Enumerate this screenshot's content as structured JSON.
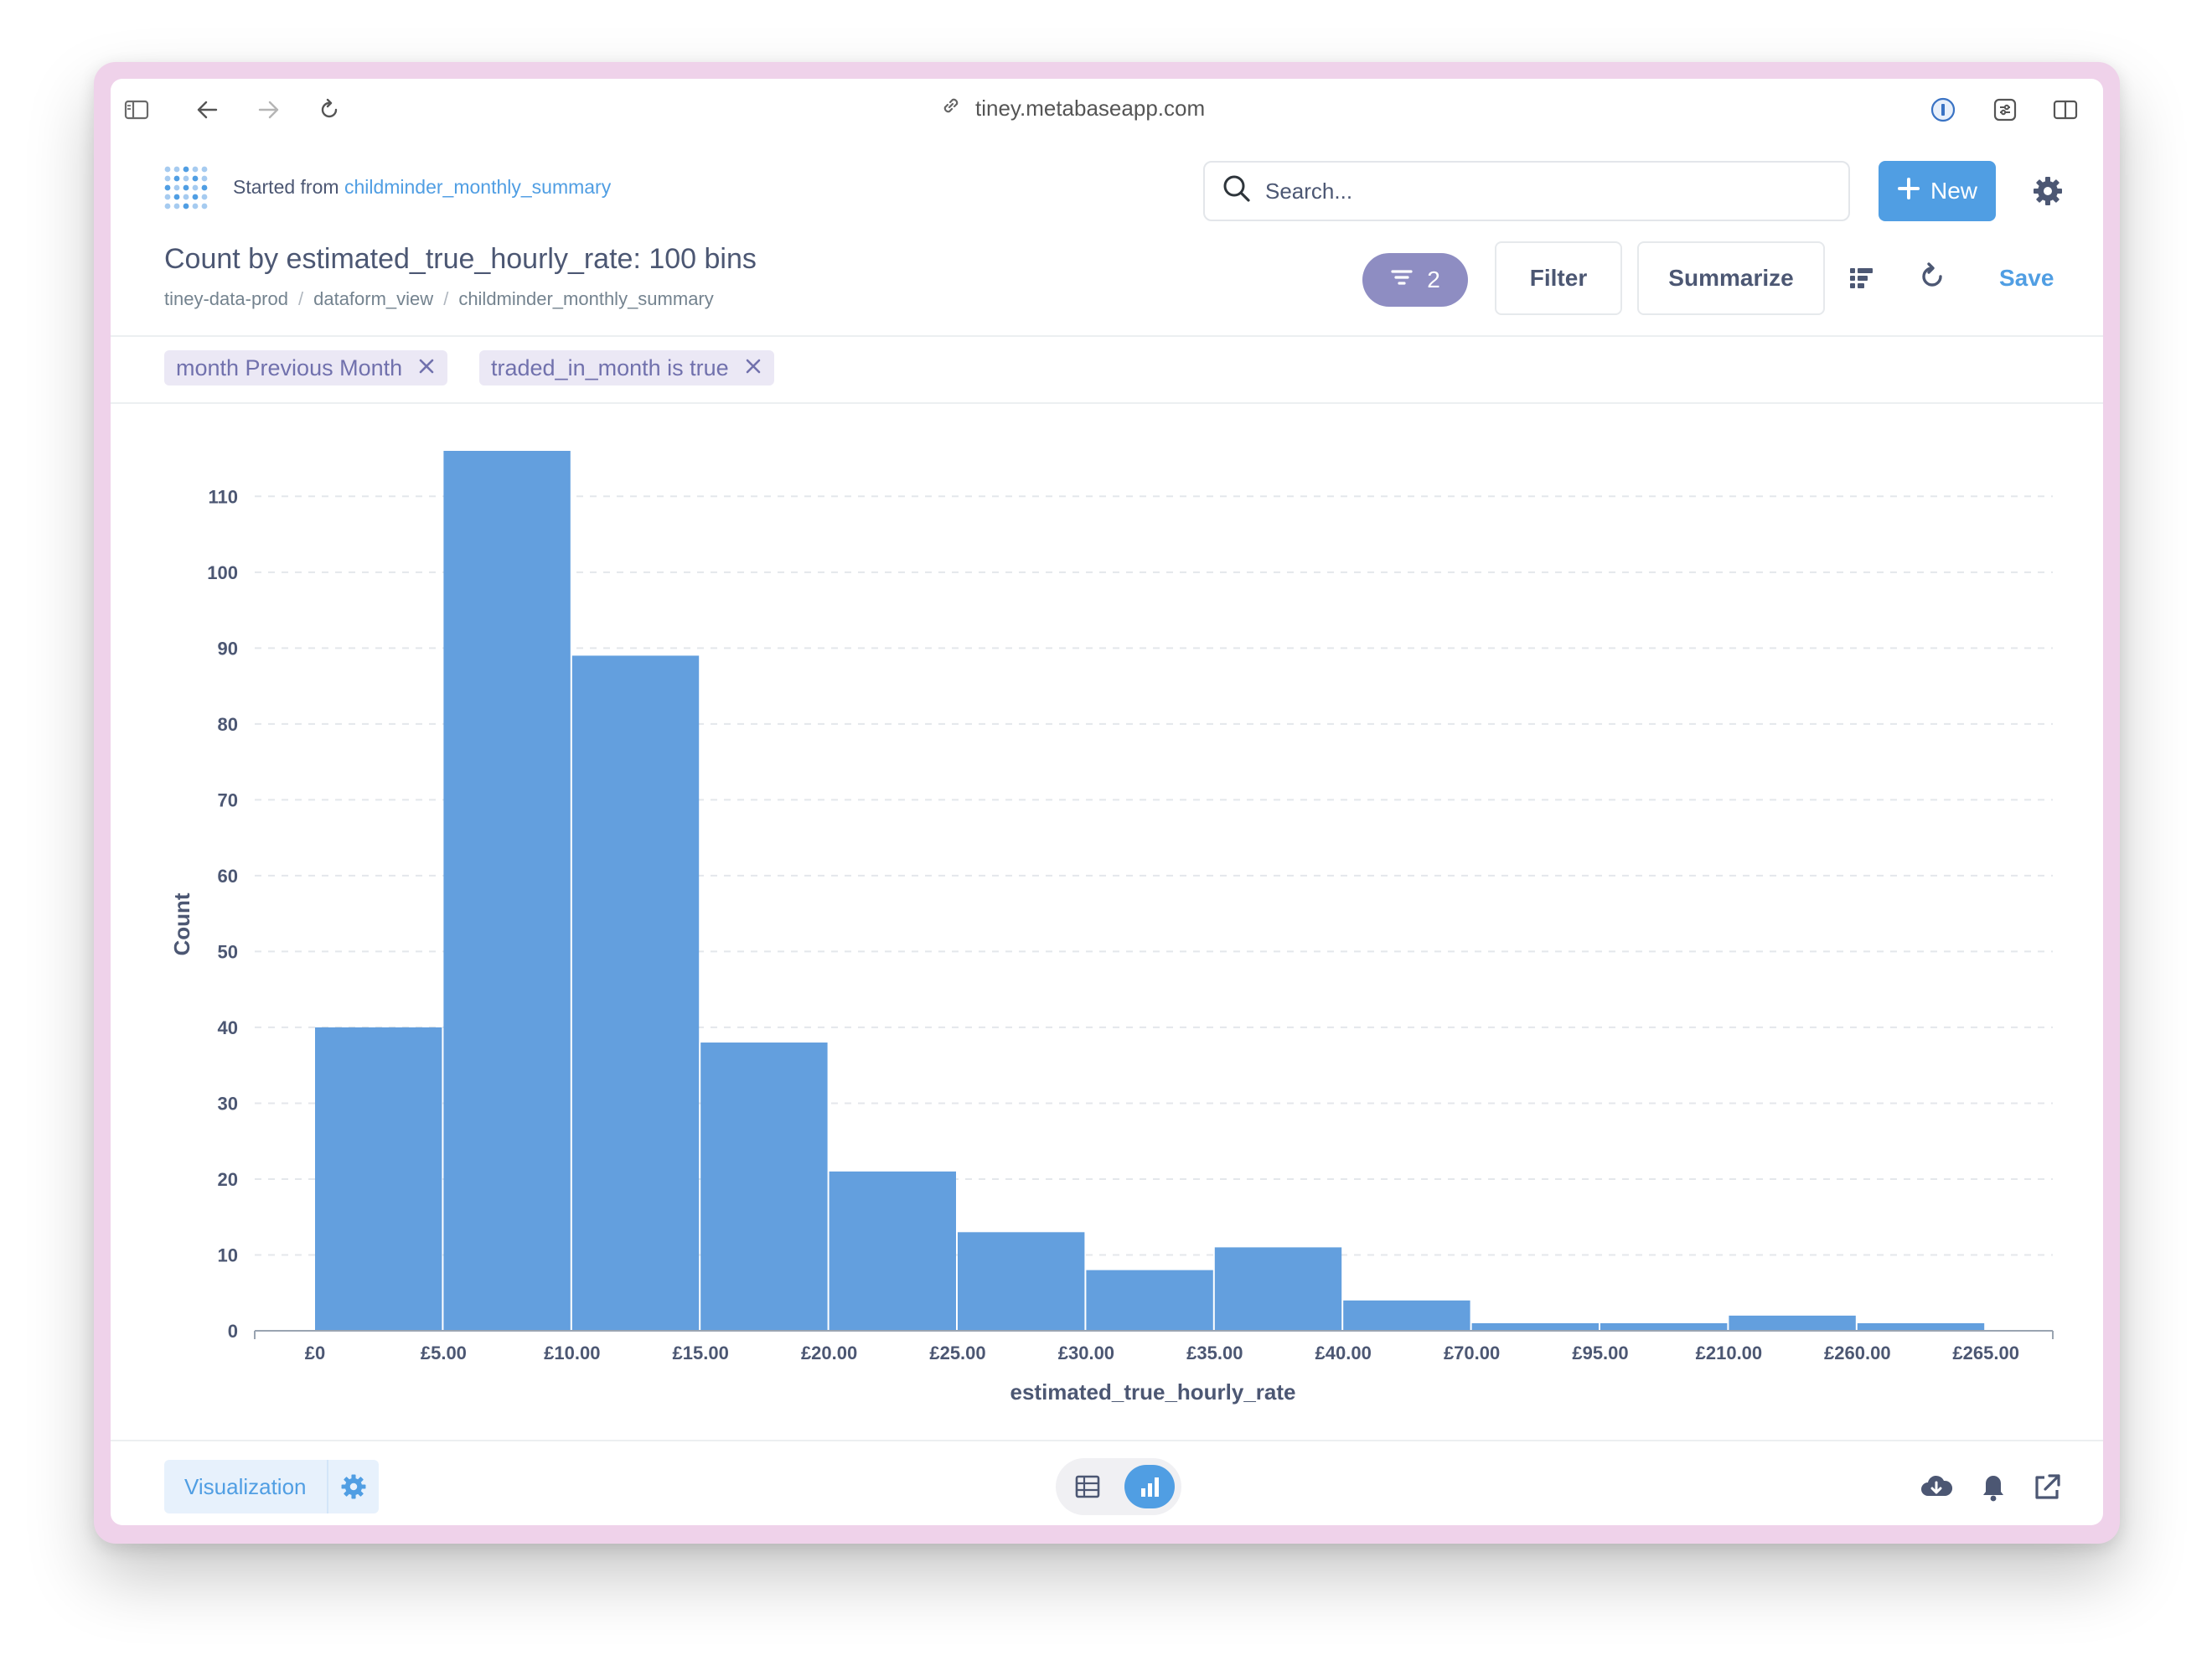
{
  "browser": {
    "url": "tiney.metabaseapp.com"
  },
  "header": {
    "started_prefix": "Started from",
    "started_link": "childminder_monthly_summary",
    "search_placeholder": "Search...",
    "new_label": "New"
  },
  "question": {
    "title": "Count by estimated_true_hourly_rate: 100 bins",
    "breadcrumbs": [
      "tiney-data-prod",
      "dataform_view",
      "childminder_monthly_summary"
    ],
    "breadcrumb_sep": "/",
    "filter_count": "2",
    "filter_label": "Filter",
    "summarize_label": "Summarize",
    "save_label": "Save"
  },
  "filters": [
    {
      "label": "month Previous Month"
    },
    {
      "label": "traded_in_month is true"
    }
  ],
  "footer": {
    "visualization_label": "Visualization"
  },
  "colors": {
    "accent": "#509ee3",
    "bar": "#639fde",
    "filter_pill_bg": "#ebe8f5",
    "filter_pill_text": "#7171ad",
    "filter_count_bg": "#8e8dc2"
  },
  "chart_data": {
    "type": "bar",
    "categories": [
      "£0",
      "£5.00",
      "£10.00",
      "£15.00",
      "£20.00",
      "£25.00",
      "£30.00",
      "£35.00",
      "£40.00",
      "£70.00",
      "£95.00",
      "£210.00",
      "£260.00",
      "£265.00"
    ],
    "values": [
      40,
      116,
      89,
      38,
      21,
      13,
      8,
      11,
      4,
      1,
      1,
      2,
      1,
      0
    ],
    "xlabel": "estimated_true_hourly_rate",
    "ylabel": "Count",
    "yticks": [
      0,
      10,
      20,
      30,
      40,
      50,
      60,
      70,
      80,
      90,
      100,
      110
    ],
    "ylim": [
      0,
      116
    ],
    "grid": true
  }
}
